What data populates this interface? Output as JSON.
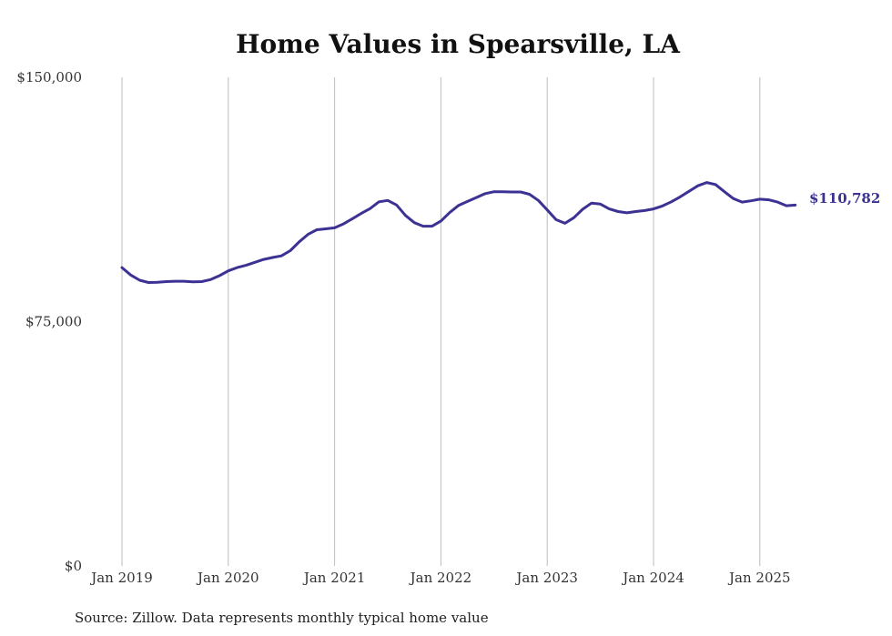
{
  "chart_data": {
    "type": "line",
    "title": "Home Values in Spearsville, LA",
    "source": "Source: Zillow. Data represents monthly typical home value",
    "xlabel": "",
    "ylabel": "",
    "ylim": [
      0,
      150000
    ],
    "y_ticks": [
      {
        "value": 0,
        "label": "$0"
      },
      {
        "value": 75000,
        "label": "$75,000"
      },
      {
        "value": 150000,
        "label": "$150,000"
      }
    ],
    "x_ticks": [
      {
        "date": "2019-01",
        "label": "Jan 2019"
      },
      {
        "date": "2020-01",
        "label": "Jan 2020"
      },
      {
        "date": "2021-01",
        "label": "Jan 2021"
      },
      {
        "date": "2022-01",
        "label": "Jan 2022"
      },
      {
        "date": "2023-01",
        "label": "Jan 2023"
      },
      {
        "date": "2024-01",
        "label": "Jan 2024"
      },
      {
        "date": "2025-01",
        "label": "Jan 2025"
      }
    ],
    "grid": "vertical",
    "line_color": "#3b3293",
    "end_label": "$110,782",
    "series": [
      {
        "x": [
          "2019-01",
          "2019-02",
          "2019-03",
          "2019-04",
          "2019-05",
          "2019-06",
          "2019-07",
          "2019-08",
          "2019-09",
          "2019-10",
          "2019-11",
          "2019-12",
          "2020-01",
          "2020-02",
          "2020-03",
          "2020-04",
          "2020-05",
          "2020-06",
          "2020-07",
          "2020-08",
          "2020-09",
          "2020-10",
          "2020-11",
          "2020-12",
          "2021-01",
          "2021-02",
          "2021-03",
          "2021-04",
          "2021-05",
          "2021-06",
          "2021-07",
          "2021-08",
          "2021-09",
          "2021-10",
          "2021-11",
          "2021-12",
          "2022-01",
          "2022-02",
          "2022-03",
          "2022-04",
          "2022-05",
          "2022-06",
          "2022-07",
          "2022-08",
          "2022-09",
          "2022-10",
          "2022-11",
          "2022-12",
          "2023-01",
          "2023-02",
          "2023-03",
          "2023-04",
          "2023-05",
          "2023-06",
          "2023-07",
          "2023-08",
          "2023-09",
          "2023-10",
          "2023-11",
          "2023-12",
          "2024-01",
          "2024-02",
          "2024-03",
          "2024-04",
          "2024-05",
          "2024-06",
          "2024-07",
          "2024-08",
          "2024-09",
          "2024-10",
          "2024-11",
          "2024-12",
          "2025-01",
          "2025-02",
          "2025-03",
          "2025-04",
          "2025-05"
        ],
        "values": [
          91600,
          89300,
          87700,
          87000,
          87100,
          87300,
          87400,
          87400,
          87200,
          87300,
          87900,
          89100,
          90600,
          91600,
          92300,
          93200,
          94100,
          94700,
          95200,
          96800,
          99500,
          101800,
          103200,
          103500,
          103800,
          105000,
          106600,
          108200,
          109700,
          111800,
          112200,
          110800,
          107600,
          105400,
          104300,
          104300,
          105900,
          108500,
          110700,
          111900,
          113100,
          114300,
          114900,
          114900,
          114800,
          114800,
          114100,
          112200,
          109300,
          106300,
          105200,
          106900,
          109500,
          111400,
          111100,
          109600,
          108800,
          108400,
          108800,
          109100,
          109600,
          110500,
          111800,
          113300,
          115000,
          116700,
          117700,
          117100,
          114900,
          112800,
          111700,
          112100,
          112600,
          112400,
          111700,
          110600,
          110782
        ]
      }
    ]
  }
}
